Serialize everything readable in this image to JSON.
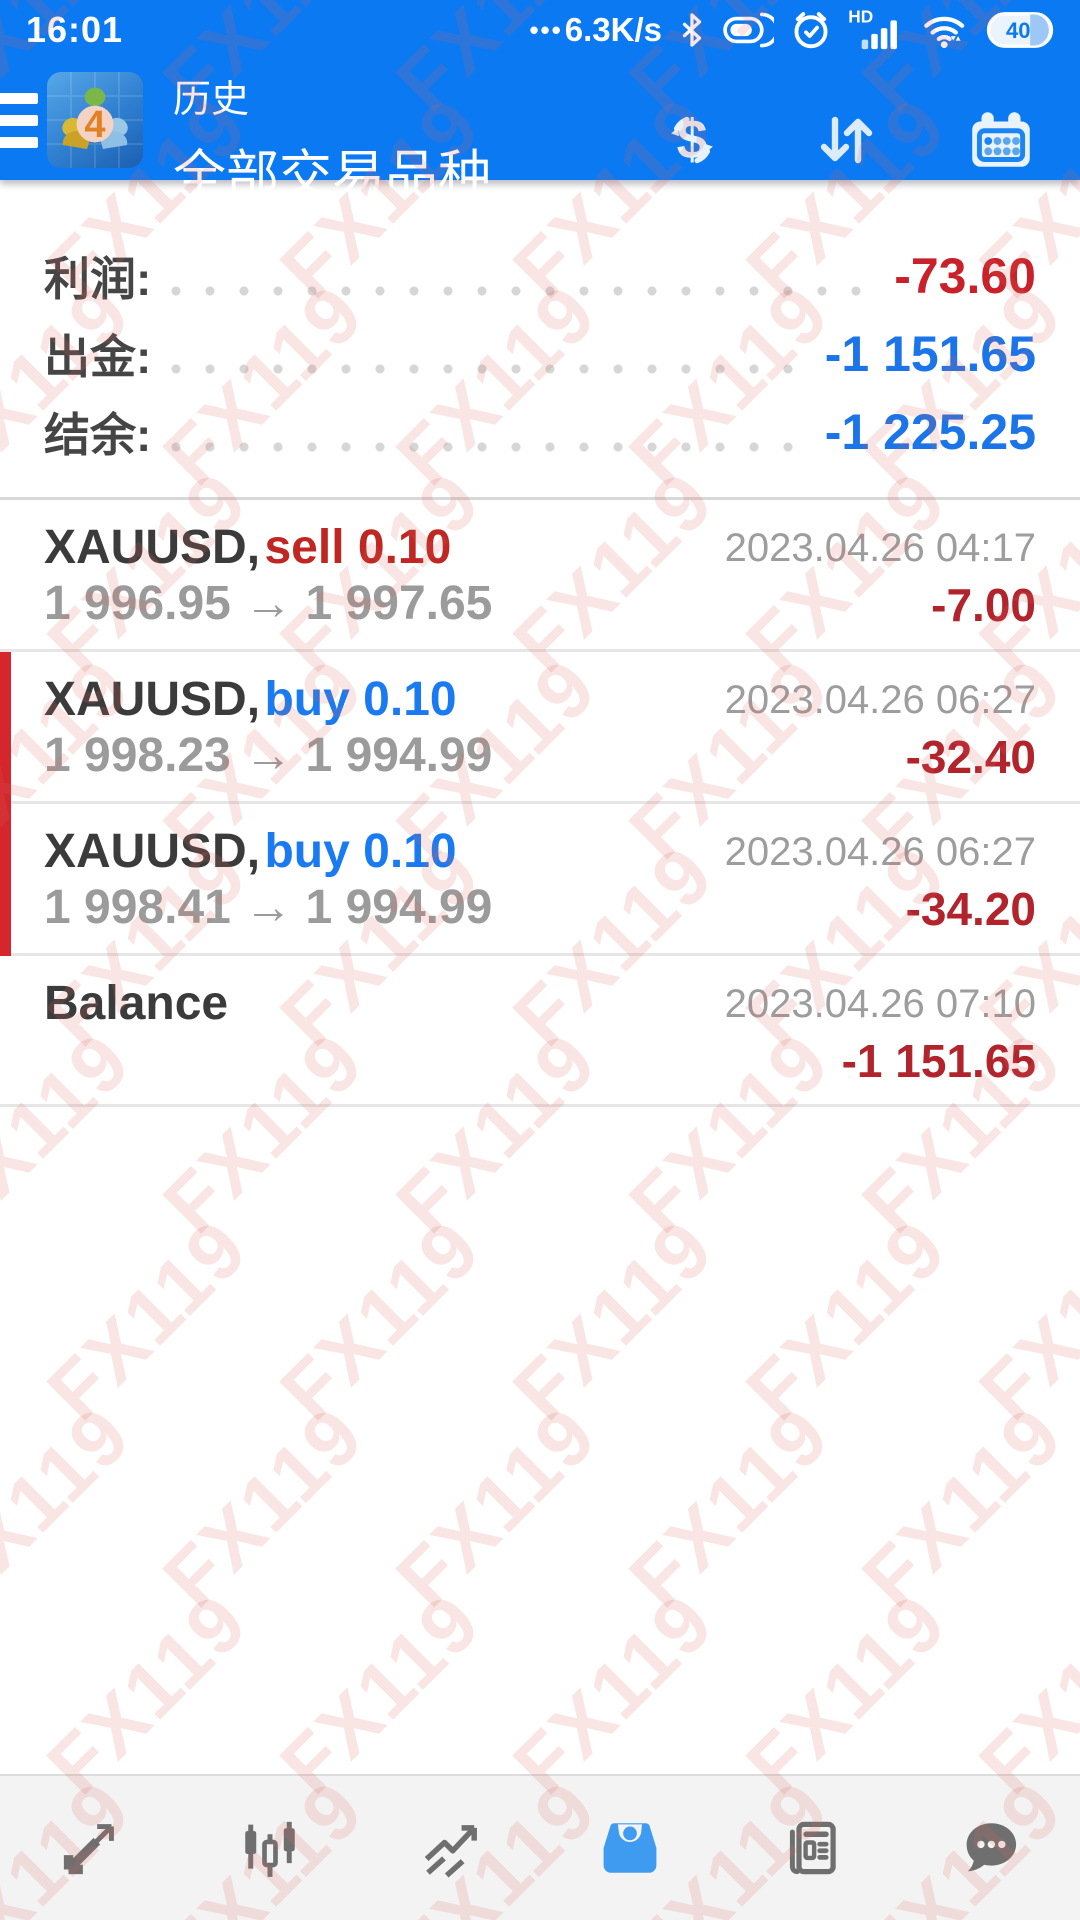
{
  "status_bar": {
    "time": "16:01",
    "network_prefix": "•••",
    "network_speed": "6.3K/s",
    "hd_label": "HD",
    "battery_level": "40"
  },
  "header": {
    "nav_title": "历史",
    "nav_subtitle": "全部交易品种",
    "app_badge": "4"
  },
  "summary": {
    "rows": [
      {
        "label": "利润:",
        "value": "-73.60",
        "color": "#c9212a"
      },
      {
        "label": "出金:",
        "value": "-1 151.65",
        "color": "#1b74e8"
      },
      {
        "label": "结余:",
        "value": "-1 225.25",
        "color": "#1b74e8"
      }
    ]
  },
  "price_arrow": "→",
  "trades": [
    {
      "symbol": "XAUUSD,",
      "side": "sell 0.10",
      "side_color": "#c02622",
      "open_price": "1 996.95",
      "close_price": "1 997.65",
      "datetime": "2023.04.26 04:17",
      "profit": "-7.00",
      "loss_marker": false
    },
    {
      "symbol": "XAUUSD,",
      "side": "buy 0.10",
      "side_color": "#1a7af2",
      "open_price": "1 998.23",
      "close_price": "1 994.99",
      "datetime": "2023.04.26 06:27",
      "profit": "-32.40",
      "loss_marker": true
    },
    {
      "symbol": "XAUUSD,",
      "side": "buy 0.10",
      "side_color": "#1a7af2",
      "open_price": "1 998.41",
      "close_price": "1 994.99",
      "datetime": "2023.04.26 06:27",
      "profit": "-34.20",
      "loss_marker": true
    }
  ],
  "balance_row": {
    "label": "Balance",
    "datetime": "2023.04.26 07:10",
    "value": "-1 151.65"
  },
  "watermark": {
    "text": "FX119"
  },
  "colors": {
    "header_blue": "#0b79f2",
    "profit_red": "#b2242c",
    "value_blue": "#1b74e8",
    "nav_active_blue": "#3f9bf0",
    "nav_gray": "#6f6f6f"
  }
}
